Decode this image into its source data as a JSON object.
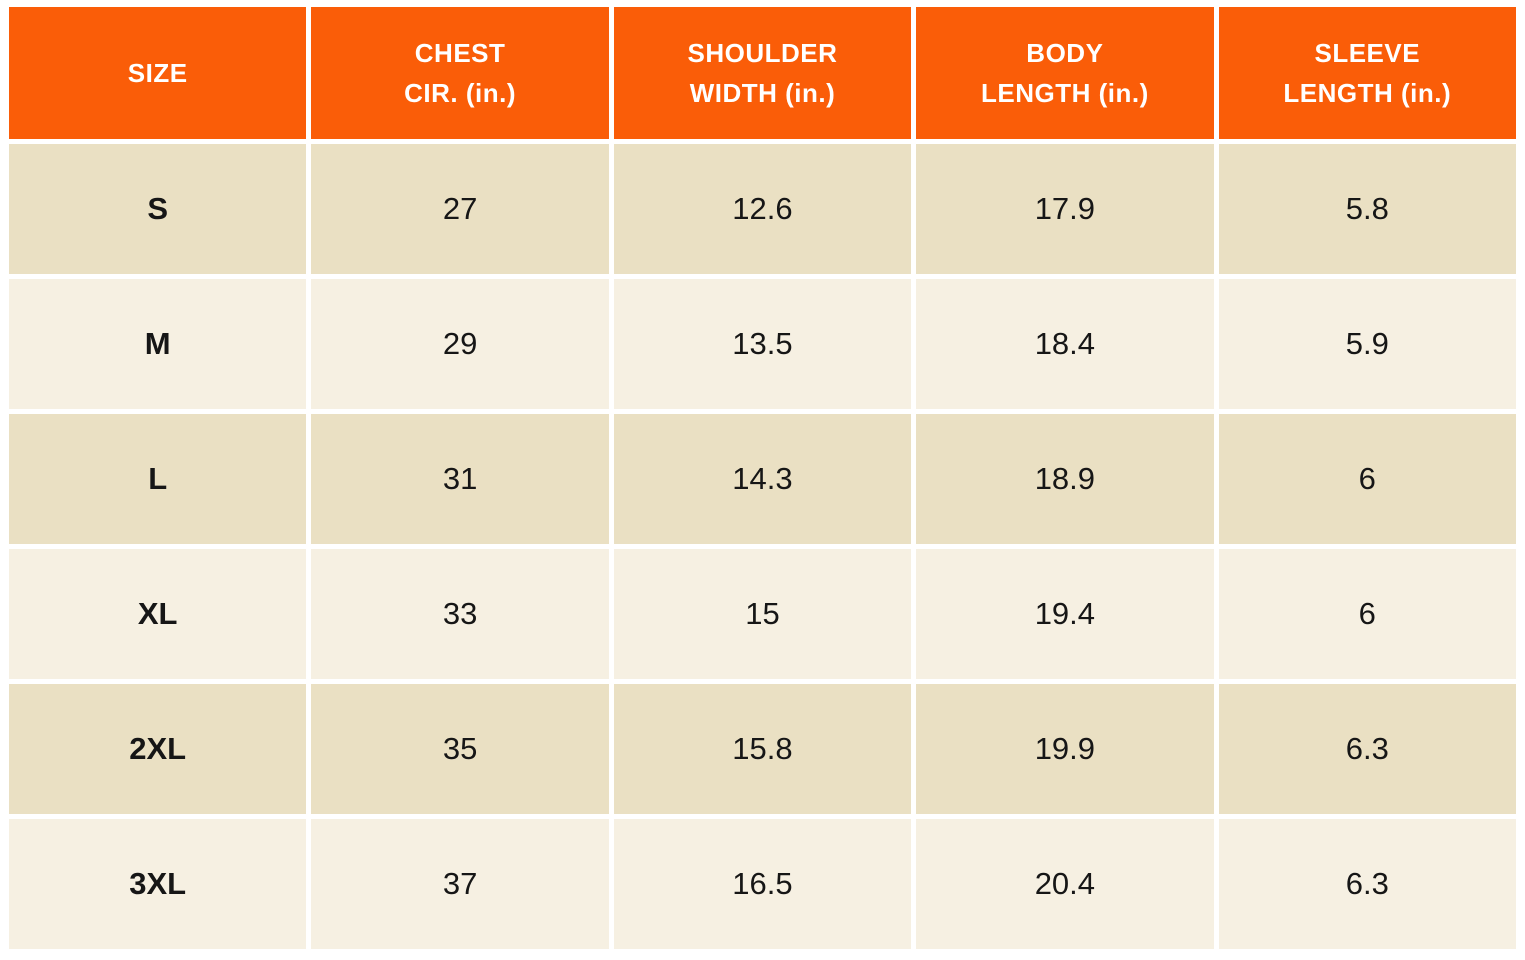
{
  "chart_data": {
    "type": "table",
    "columns": [
      "SIZE",
      "CHEST CIR. (in.)",
      "SHOULDER WIDTH (in.)",
      "BODY LENGTH (in.)",
      "SLEEVE LENGTH (in.)"
    ],
    "rows": [
      [
        "S",
        27,
        12.6,
        17.9,
        5.8
      ],
      [
        "M",
        29,
        13.5,
        18.4,
        5.9
      ],
      [
        "L",
        31,
        14.3,
        18.9,
        6
      ],
      [
        "XL",
        33,
        15,
        19.4,
        6
      ],
      [
        "2XL",
        35,
        15.8,
        19.9,
        6.3
      ],
      [
        "3XL",
        37,
        16.5,
        20.4,
        6.3
      ]
    ],
    "layout": {
      "header_position": "top",
      "row_striping": "alternating",
      "cell_gap": true
    }
  },
  "table": {
    "header_labels": [
      "SIZE",
      "CHEST\nCIR. (in.)",
      "SHOULDER\nWIDTH (in.)",
      "BODY\nLENGTH (in.)",
      "SLEEVE\nLENGTH (in.)"
    ],
    "colors": {
      "header_bg": "#FA5D08",
      "header_text": "#FFFFFF",
      "row_alt_bg": "#EAE0C3",
      "row_bg": "#F6F0E2",
      "cell_text": "#161616",
      "gap": "#FFFFFF"
    }
  }
}
